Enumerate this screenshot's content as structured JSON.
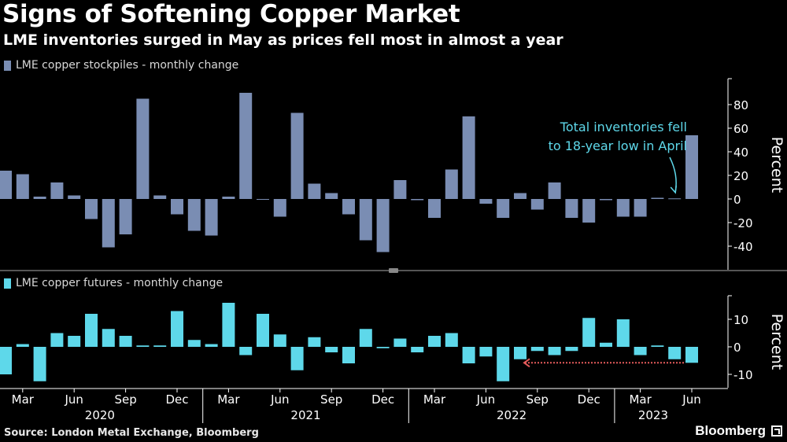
{
  "title": "Signs of Softening Copper Market",
  "subtitle": "LME inventories surged in May as prices fell most in almost a year",
  "source": "Source: London Metal Exchange, Bloomberg",
  "brand": "Bloomberg",
  "colors": {
    "stockpiles": "#7a8db3",
    "futures": "#5ed8ea",
    "annotation": "#5ed8ea",
    "dotted_line": "#e35a5a",
    "axis": "#ffffff"
  },
  "chart_data": [
    {
      "type": "bar",
      "name": "stockpiles",
      "legend": "LME copper stockpiles - monthly change",
      "ylabel": "Percent",
      "ylim": [
        -60,
        100
      ],
      "yticks": [
        -40,
        -20,
        0,
        20,
        40,
        60,
        80
      ],
      "categories": [
        "2020-01",
        "2020-02",
        "2020-03",
        "2020-04",
        "2020-05",
        "2020-06",
        "2020-07",
        "2020-08",
        "2020-09",
        "2020-10",
        "2020-11",
        "2020-12",
        "2021-01",
        "2021-02",
        "2021-03",
        "2021-04",
        "2021-05",
        "2021-06",
        "2021-07",
        "2021-08",
        "2021-09",
        "2021-10",
        "2021-11",
        "2021-12",
        "2022-01",
        "2022-02",
        "2022-03",
        "2022-04",
        "2022-05",
        "2022-06",
        "2022-07",
        "2022-08",
        "2022-09",
        "2022-10",
        "2022-11",
        "2022-12",
        "2023-01",
        "2023-02",
        "2023-03",
        "2023-04",
        "2023-05"
      ],
      "values": [
        24,
        21,
        2,
        14,
        3,
        -17,
        -41,
        -30,
        85,
        3,
        -13,
        -27,
        -31,
        2,
        90,
        0,
        -15,
        73,
        13,
        5,
        -13,
        -35,
        -45,
        16,
        -1,
        -16,
        25,
        70,
        -4,
        -16,
        5,
        -9,
        14,
        -16,
        -20,
        -1,
        -15,
        -15,
        1,
        0.5,
        54
      ],
      "annotation": {
        "line1": "Total inventories fell",
        "line2": "to 18-year low in April",
        "points_to": "2023-04"
      }
    },
    {
      "type": "bar",
      "name": "futures",
      "legend": "LME copper futures - monthly change",
      "ylabel": "Percent",
      "ylim": [
        -15,
        18
      ],
      "yticks": [
        -10,
        0,
        10
      ],
      "categories": [
        "2020-01",
        "2020-02",
        "2020-03",
        "2020-04",
        "2020-05",
        "2020-06",
        "2020-07",
        "2020-08",
        "2020-09",
        "2020-10",
        "2020-11",
        "2020-12",
        "2021-01",
        "2021-02",
        "2021-03",
        "2021-04",
        "2021-05",
        "2021-06",
        "2021-07",
        "2021-08",
        "2021-09",
        "2021-10",
        "2021-11",
        "2021-12",
        "2022-01",
        "2022-02",
        "2022-03",
        "2022-04",
        "2022-05",
        "2022-06",
        "2022-07",
        "2022-08",
        "2022-09",
        "2022-10",
        "2022-11",
        "2022-12",
        "2023-01",
        "2023-02",
        "2023-03",
        "2023-04",
        "2023-05"
      ],
      "values": [
        -10,
        1,
        -12.5,
        5,
        4,
        12,
        6.5,
        4,
        0.5,
        0.5,
        13,
        2.5,
        1,
        16,
        -3,
        12,
        4.5,
        -8.5,
        3.5,
        -2,
        -6,
        6.5,
        -0.5,
        3,
        -2,
        4,
        5,
        -6,
        -3.5,
        -12.5,
        -4.5,
        -1.5,
        -3,
        -1.5,
        10.5,
        1.5,
        10,
        -3,
        0.5,
        -4.5,
        -5.8
      ],
      "reference_line": {
        "from": "2022-07",
        "to": "2023-05",
        "value": -5.8
      }
    }
  ],
  "xaxis": {
    "month_labels": [
      "Mar",
      "Jun",
      "Sep",
      "Dec",
      "Mar",
      "Jun",
      "Sep",
      "Dec",
      "Mar",
      "Jun",
      "Sep",
      "Dec",
      "Mar",
      "Jun"
    ],
    "month_positions": [
      2,
      5,
      8,
      11,
      14,
      17,
      20,
      23,
      26,
      29,
      32,
      35,
      38,
      41
    ],
    "year_labels": [
      "2020",
      "2021",
      "2022",
      "2023"
    ],
    "year_positions": [
      6.5,
      18.5,
      30.5,
      38.75
    ]
  }
}
